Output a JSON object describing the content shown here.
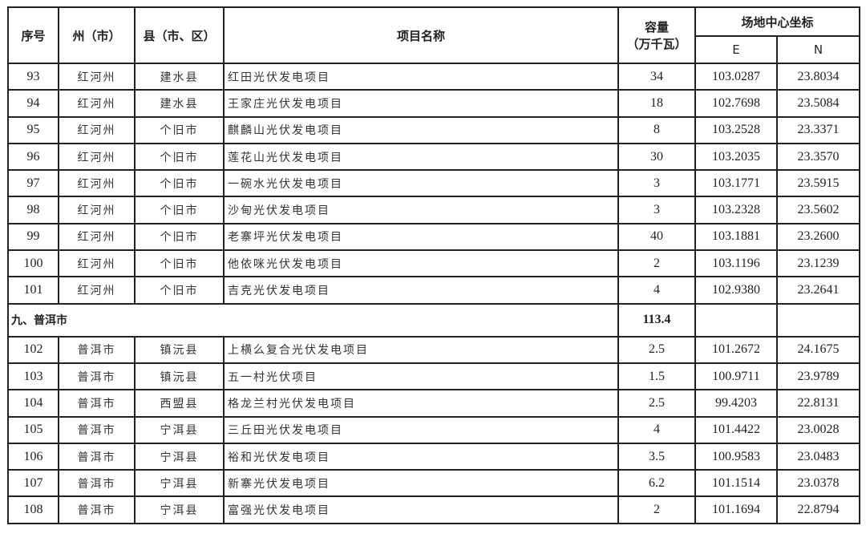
{
  "header": {
    "seq": "序号",
    "prefecture": "州（市）",
    "county": "县（市、区）",
    "project_name": "项目名称",
    "capacity_line1": "容量",
    "capacity_line2": "（万千瓦）",
    "coords": "场地中心坐标",
    "e": "E",
    "n": "N"
  },
  "rows_a": [
    {
      "seq": "93",
      "pref": "红河州",
      "county": "建水县",
      "name": "红田光伏发电项目",
      "cap": "34",
      "e": "103.0287",
      "n": "23.8034"
    },
    {
      "seq": "94",
      "pref": "红河州",
      "county": "建水县",
      "name": "王家庄光伏发电项目",
      "cap": "18",
      "e": "102.7698",
      "n": "23.5084"
    },
    {
      "seq": "95",
      "pref": "红河州",
      "county": "个旧市",
      "name": "麒麟山光伏发电项目",
      "cap": "8",
      "e": "103.2528",
      "n": "23.3371"
    },
    {
      "seq": "96",
      "pref": "红河州",
      "county": "个旧市",
      "name": "莲花山光伏发电项目",
      "cap": "30",
      "e": "103.2035",
      "n": "23.3570"
    },
    {
      "seq": "97",
      "pref": "红河州",
      "county": "个旧市",
      "name": "一碗水光伏发电项目",
      "cap": "3",
      "e": "103.1771",
      "n": "23.5915"
    },
    {
      "seq": "98",
      "pref": "红河州",
      "county": "个旧市",
      "name": "沙甸光伏发电项目",
      "cap": "3",
      "e": "103.2328",
      "n": "23.5602"
    },
    {
      "seq": "99",
      "pref": "红河州",
      "county": "个旧市",
      "name": "老寨坪光伏发电项目",
      "cap": "40",
      "e": "103.1881",
      "n": "23.2600"
    },
    {
      "seq": "100",
      "pref": "红河州",
      "county": "个旧市",
      "name": "他依咪光伏发电项目",
      "cap": "2",
      "e": "103.1196",
      "n": "23.1239"
    },
    {
      "seq": "101",
      "pref": "红河州",
      "county": "个旧市",
      "name": "吉克光伏发电项目",
      "cap": "4",
      "e": "102.9380",
      "n": "23.2641"
    }
  ],
  "section": {
    "name": "九、普洱市",
    "capacity": "113.4"
  },
  "rows_b": [
    {
      "seq": "102",
      "pref": "普洱市",
      "county": "镇沅县",
      "name": "上横么复合光伏发电项目",
      "cap": "2.5",
      "e": "101.2672",
      "n": "24.1675"
    },
    {
      "seq": "103",
      "pref": "普洱市",
      "county": "镇沅县",
      "name": "五一村光伏项目",
      "cap": "1.5",
      "e": "100.9711",
      "n": "23.9789"
    },
    {
      "seq": "104",
      "pref": "普洱市",
      "county": "西盟县",
      "name": "格龙兰村光伏发电项目",
      "cap": "2.5",
      "e": "99.4203",
      "n": "22.8131"
    },
    {
      "seq": "105",
      "pref": "普洱市",
      "county": "宁洱县",
      "name": "三丘田光伏发电项目",
      "cap": "4",
      "e": "101.4422",
      "n": "23.0028"
    },
    {
      "seq": "106",
      "pref": "普洱市",
      "county": "宁洱县",
      "name": "裕和光伏发电项目",
      "cap": "3.5",
      "e": "100.9583",
      "n": "23.0483"
    },
    {
      "seq": "107",
      "pref": "普洱市",
      "county": "宁洱县",
      "name": "新寨光伏发电项目",
      "cap": "6.2",
      "e": "101.1514",
      "n": "23.0378"
    },
    {
      "seq": "108",
      "pref": "普洱市",
      "county": "宁洱县",
      "name": "富强光伏发电项目",
      "cap": "2",
      "e": "101.1694",
      "n": "22.8794"
    }
  ]
}
